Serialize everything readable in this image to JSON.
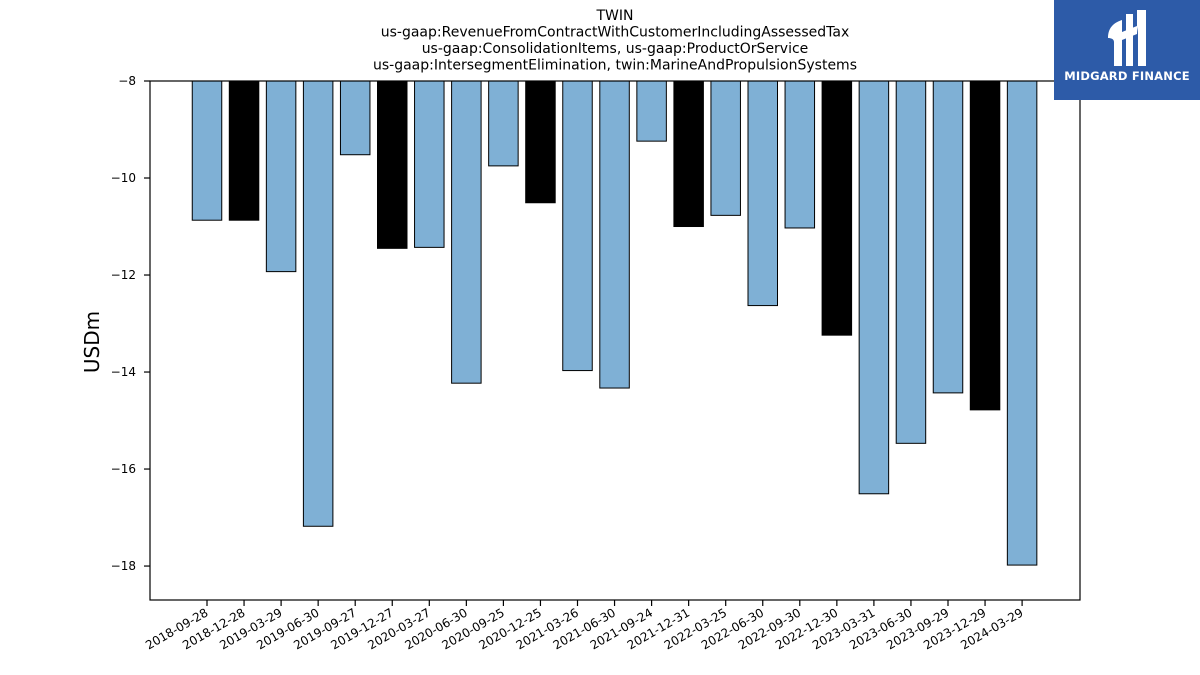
{
  "brand": {
    "name": "MIDGARD FINANCE",
    "background_color": "#2d5ba8",
    "mark_icon": "midgard-logo-icon"
  },
  "chart_data": {
    "type": "bar",
    "title_lines": [
      "TWIN",
      "us-gaap:RevenueFromContractWithCustomerIncludingAssessedTax",
      "us-gaap:ConsolidationItems, us-gaap:ProductOrService",
      "us-gaap:IntersegmentElimination, twin:MarineAndPropulsionSystems"
    ],
    "xlabel": "",
    "ylabel": "USDm",
    "ylim": [
      -18.7,
      -8
    ],
    "yticks": [
      -8,
      -10,
      -12,
      -14,
      -16,
      -18
    ],
    "grid": false,
    "colors": {
      "quarter": "#7fb0d5",
      "fiscal_year_end": "#000000",
      "edge": "#000000"
    },
    "categories": [
      "2018-09-28",
      "2018-12-28",
      "2019-03-29",
      "2019-06-30",
      "2019-09-27",
      "2019-12-27",
      "2020-03-27",
      "2020-06-30",
      "2020-09-25",
      "2020-12-25",
      "2021-03-26",
      "2021-06-30",
      "2021-09-24",
      "2021-12-31",
      "2022-03-25",
      "2022-06-30",
      "2022-09-30",
      "2022-12-30",
      "2023-03-31",
      "2023-06-30",
      "2023-09-29",
      "2023-12-29",
      "2024-03-29"
    ],
    "values": [
      -10.87,
      -10.87,
      -11.93,
      -17.18,
      -9.52,
      -11.45,
      -11.43,
      -14.23,
      -9.75,
      -10.51,
      -13.97,
      -14.33,
      -9.24,
      -11.0,
      -10.77,
      -12.63,
      -11.03,
      -13.24,
      -16.51,
      -15.47,
      -14.43,
      -14.78,
      -17.98
    ],
    "highlight": [
      false,
      true,
      false,
      false,
      false,
      true,
      false,
      false,
      false,
      true,
      false,
      false,
      false,
      true,
      false,
      false,
      false,
      true,
      false,
      false,
      false,
      true,
      false
    ]
  }
}
